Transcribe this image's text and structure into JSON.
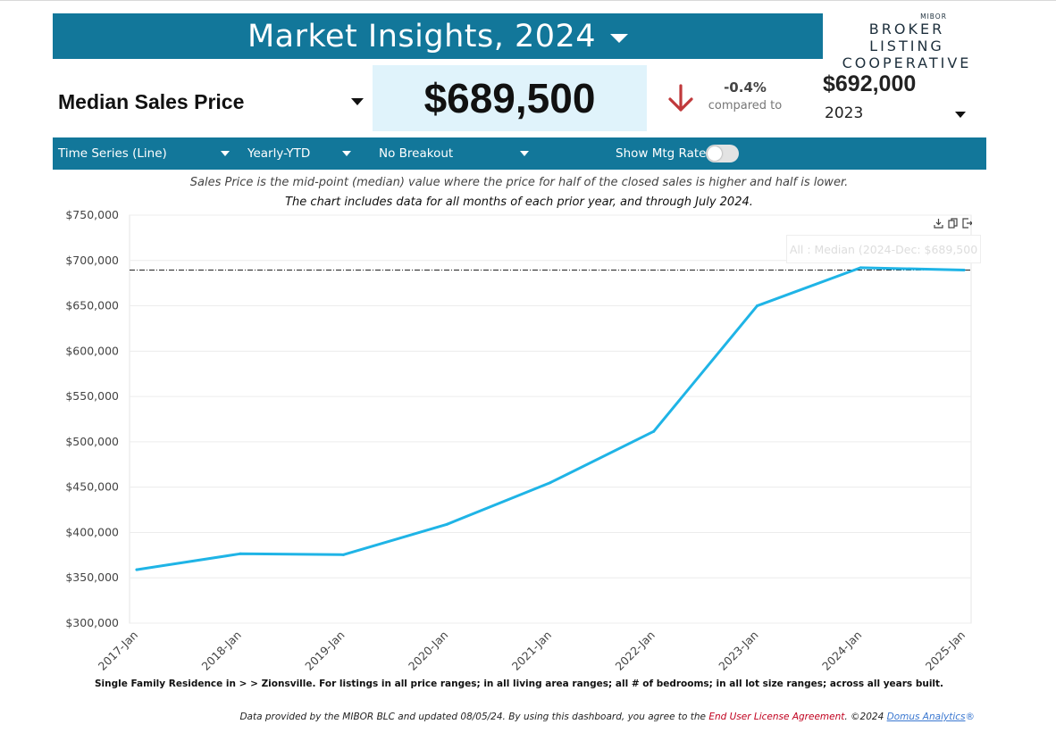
{
  "header": {
    "title": "Market Insights, 2024",
    "logo_top": "MIBOR",
    "logo_line1": "BROKER LISTING",
    "logo_line2": "COOPERATIVE"
  },
  "metric": {
    "selected": "Median Sales Price",
    "value": "$689,500",
    "change_pct": "-0.4%",
    "compared_to_label": "compared to",
    "compare_value": "$692,000",
    "compare_year": "2023",
    "direction": "down"
  },
  "toolbar": {
    "chart_type": "Time Series (Line)",
    "period": "Yearly-YTD",
    "breakout": "No Breakout",
    "mtg_rate_label": "Show Mtg Rate:",
    "mtg_rate_on": false
  },
  "description": {
    "line1": "Sales Price is the mid-point (median) value where the price for half of the closed sales is higher and half is lower.",
    "line2": "The chart includes data for all months of each prior year, and through July 2024."
  },
  "tooltip": "All : Median (2024-Dec: $689,500",
  "chart_data": {
    "type": "line",
    "categories": [
      "2017-Jan",
      "2018-Jan",
      "2019-Jan",
      "2020-Jan",
      "2021-Jan",
      "2022-Jan",
      "2023-Jan",
      "2024-Jan",
      "2025-Jan"
    ],
    "series": [
      {
        "values": [
          359000,
          376500,
          375500,
          409000,
          455000,
          511500,
          650000,
          692000,
          689500
        ]
      }
    ],
    "reference_line": 689500,
    "ylim": [
      300000,
      750000
    ],
    "yticks": [
      "$300,000",
      "$350,000",
      "$400,000",
      "$450,000",
      "$500,000",
      "$550,000",
      "$600,000",
      "$650,000",
      "$700,000",
      "$750,000"
    ],
    "line_color": "#1fb4e6",
    "grid": true
  },
  "footnote": "Single Family Residence in > > Zionsville. For listings in all price ranges; in all living area ranges; all # of bedrooms; in all lot size ranges; across all years built.",
  "disclaimer": {
    "text": "Data provided by the MIBOR BLC and updated 08/05/24.  By using this dashboard, you agree to the ",
    "eula": "End User License Agreement",
    "year": ".  ©2024 ",
    "brand": "Domus Analytics",
    "reg": "®"
  },
  "colors": {
    "header_bg": "#12779a",
    "value_box_bg": "#e0f3fb",
    "down_arrow": "#c0393b"
  }
}
